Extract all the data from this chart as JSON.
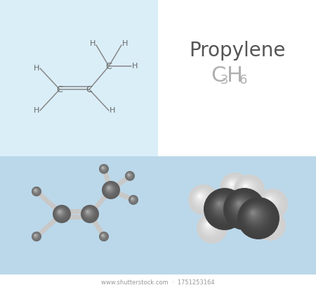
{
  "bg_top_left": "#daeef8",
  "bg_top_right": "#ffffff",
  "bg_bottom": "#bbd8ea",
  "title": "Propylene",
  "formula_color": "#b0b0b0",
  "title_color": "#555555",
  "struct_line_color": "#888888",
  "struct_atom_color": "#666666",
  "watermark": "www.shutterstock.com",
  "watermark_id": "1751253164"
}
